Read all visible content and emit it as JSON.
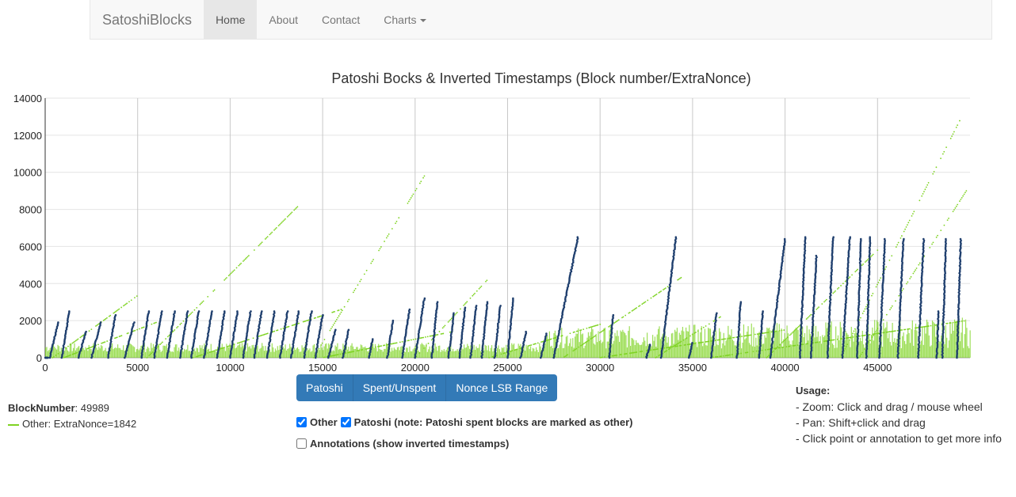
{
  "nav": {
    "brand": "SatoshiBlocks",
    "items": [
      {
        "label": "Home",
        "active": true
      },
      {
        "label": "About"
      },
      {
        "label": "Contact"
      },
      {
        "label": "Charts"
      }
    ]
  },
  "chart_data": {
    "type": "scatter",
    "title": "Patoshi Bocks & Inverted Timestamps (Block number/ExtraNonce)",
    "xlim": [
      0,
      50000
    ],
    "ylim": [
      0,
      14000
    ],
    "x_ticks": [
      0,
      5000,
      10000,
      15000,
      20000,
      25000,
      30000,
      35000,
      40000,
      45000
    ],
    "y_ticks": [
      0,
      2000,
      4000,
      6000,
      8000,
      10000,
      12000,
      14000
    ],
    "grid": true,
    "series": [
      {
        "name": "Other",
        "color": "#7ed321"
      },
      {
        "name": "Patoshi",
        "color": "#1f3f6e"
      }
    ],
    "patoshi_ramps": [
      [
        0,
        150,
        0
      ],
      [
        250,
        700,
        1900
      ],
      [
        900,
        1300,
        2500
      ],
      [
        1800,
        2200,
        1400
      ],
      [
        2500,
        3000,
        1900
      ],
      [
        3400,
        3800,
        2300
      ],
      [
        4300,
        4800,
        1900
      ],
      [
        5200,
        5600,
        2500
      ],
      [
        5900,
        6300,
        2500
      ],
      [
        6600,
        7000,
        2500
      ],
      [
        7300,
        7700,
        2500
      ],
      [
        7900,
        8300,
        2500
      ],
      [
        8600,
        9000,
        2500
      ],
      [
        9300,
        9700,
        2500
      ],
      [
        10000,
        10400,
        2500
      ],
      [
        10700,
        11100,
        2500
      ],
      [
        11300,
        11700,
        2500
      ],
      [
        12000,
        12400,
        2500
      ],
      [
        12700,
        13100,
        2500
      ],
      [
        13300,
        13700,
        2500
      ],
      [
        14000,
        14400,
        2500
      ],
      [
        14600,
        15000,
        2300
      ],
      [
        15300,
        15700,
        1500
      ],
      [
        16100,
        16400,
        1500
      ],
      [
        17500,
        17700,
        1000
      ],
      [
        18500,
        18800,
        2000
      ],
      [
        19300,
        19700,
        2600
      ],
      [
        20000,
        20500,
        3200
      ],
      [
        20900,
        21200,
        3000
      ],
      [
        21800,
        22100,
        2400
      ],
      [
        22400,
        22700,
        2700
      ],
      [
        23000,
        23300,
        2800
      ],
      [
        23600,
        23900,
        3000
      ],
      [
        24300,
        24600,
        2800
      ],
      [
        25000,
        25300,
        3200
      ],
      [
        25700,
        26000,
        1400
      ],
      [
        26800,
        27100,
        1300
      ],
      [
        27500,
        28800,
        6500
      ],
      [
        30500,
        30700,
        2300
      ],
      [
        32500,
        32700,
        700
      ],
      [
        33300,
        34100,
        6500
      ],
      [
        34800,
        35000,
        800
      ],
      [
        36000,
        36300,
        2400
      ],
      [
        37400,
        37600,
        3000
      ],
      [
        38600,
        38800,
        2500
      ],
      [
        39200,
        40000,
        6400
      ],
      [
        40800,
        41100,
        6500
      ],
      [
        41400,
        41700,
        5500
      ],
      [
        42300,
        42600,
        6500
      ],
      [
        43100,
        43500,
        6500
      ],
      [
        43900,
        44100,
        6400
      ],
      [
        44400,
        44600,
        6500
      ],
      [
        45100,
        45400,
        6400
      ],
      [
        46100,
        46400,
        6400
      ],
      [
        47200,
        47500,
        6400
      ],
      [
        48200,
        48300,
        2500
      ],
      [
        48500,
        48700,
        6400
      ],
      [
        49300,
        49500,
        6400
      ]
    ],
    "other_ramps": [
      [
        400,
        5200,
        3500
      ],
      [
        5500,
        13700,
        8200
      ],
      [
        14500,
        20500,
        9800
      ],
      [
        20000,
        24000,
        4300
      ],
      [
        28000,
        34500,
        4400
      ],
      [
        33000,
        36500,
        2200
      ],
      [
        39000,
        45000,
        5800
      ],
      [
        43000,
        49500,
        12900
      ],
      [
        44000,
        49800,
        9000
      ],
      [
        36000,
        49800,
        2000
      ],
      [
        30000,
        40000,
        1500
      ],
      [
        8000,
        16000,
        2600
      ],
      [
        15000,
        22000,
        1400
      ],
      [
        24000,
        30000,
        1800
      ],
      [
        1000,
        6000,
        1900
      ]
    ]
  },
  "legend": {
    "block_label": "BlockNumber",
    "block_value": ": 49989",
    "series_text": "Other: ExtraNonce=1842"
  },
  "buttons": {
    "patoshi": "Patoshi",
    "spent": "Spent/Unspent",
    "nonce": "Nonce LSB Range"
  },
  "checks": {
    "other": "Other",
    "patoshi": "Patoshi (note: Patoshi spent blocks are marked as other)",
    "annotations": "Annotations (show inverted timestamps)"
  },
  "usage": {
    "title": "Usage:",
    "lines": [
      "- Zoom: Click and drag / mouse wheel",
      "- Pan: Shift+click and drag",
      "- Click point or annotation to get more info"
    ]
  }
}
